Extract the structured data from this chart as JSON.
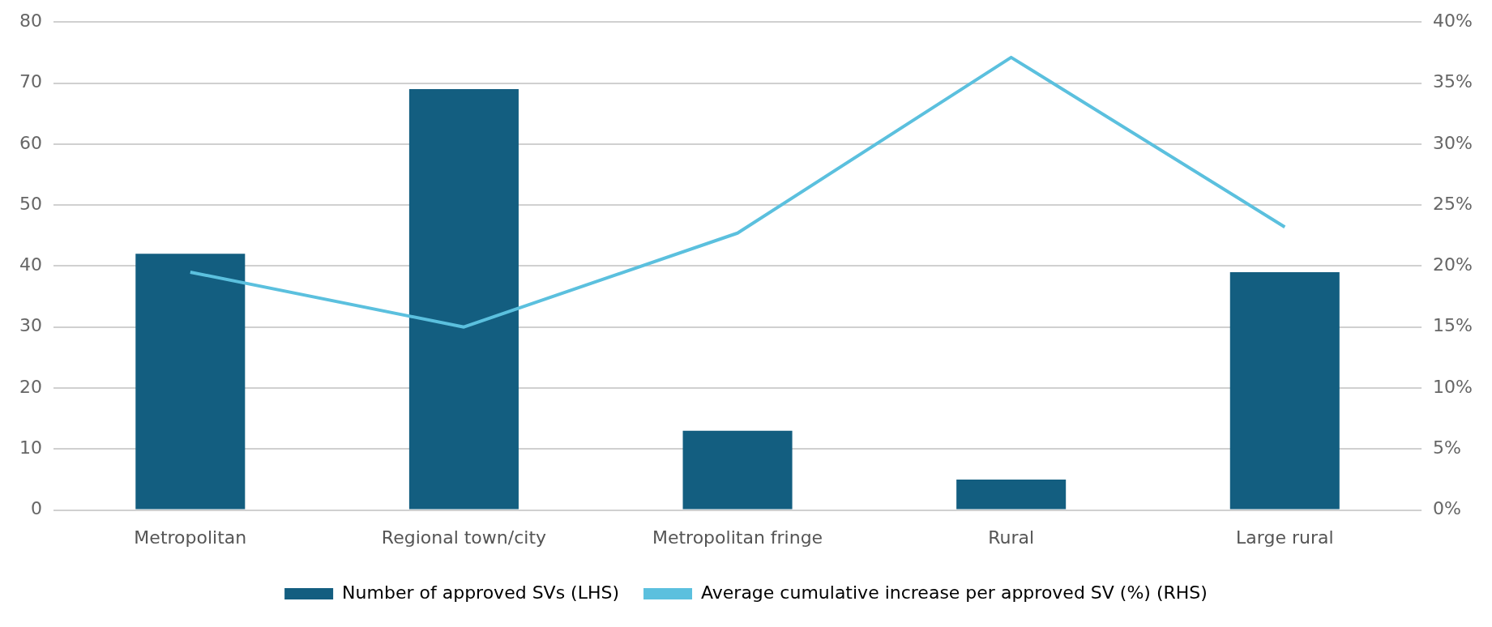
{
  "chart_data": {
    "type": "bar",
    "categories": [
      "Metropolitan",
      "Regional town/city",
      "Metropolitan fringe",
      "Rural",
      "Large rural"
    ],
    "series": [
      {
        "name": "Number of approved SVs (LHS)",
        "color": "#135e80",
        "values": [
          42,
          69,
          13,
          5,
          39
        ]
      },
      {
        "name": "Average cumulative increase per approved SV (%) (RHS)",
        "type": "line",
        "axis": "y2",
        "color": "#5bc0de",
        "values": [
          19.5,
          15,
          22.7,
          37.1,
          23.2
        ]
      }
    ],
    "ylim": [
      0,
      80
    ],
    "yticks": [
      0,
      10,
      20,
      30,
      40,
      50,
      60,
      70,
      80
    ],
    "y2lim": [
      0,
      40
    ],
    "y2ticks": [
      {
        "value": 0,
        "label": "0%"
      },
      {
        "value": 5,
        "label": "5%"
      },
      {
        "value": 10,
        "label": "10%"
      },
      {
        "value": 15,
        "label": "15%"
      },
      {
        "value": 20,
        "label": "20%"
      },
      {
        "value": 25,
        "label": "25%"
      },
      {
        "value": 30,
        "label": "30%"
      },
      {
        "value": 35,
        "label": "35%"
      },
      {
        "value": 40,
        "label": "40%"
      }
    ],
    "grid": "y",
    "legend": "bottom",
    "marker": "none"
  }
}
